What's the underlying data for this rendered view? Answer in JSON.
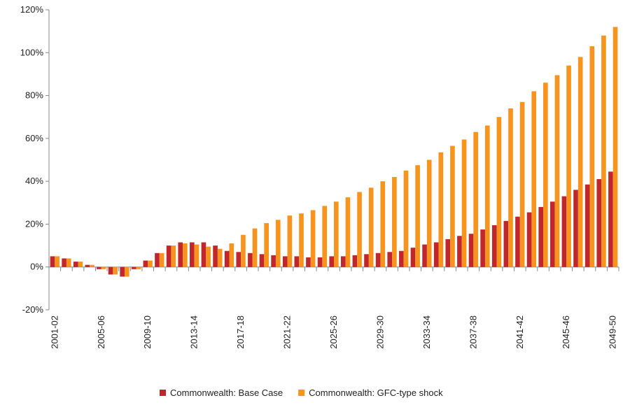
{
  "chart_data": {
    "type": "bar",
    "categories": [
      "2001-02",
      null,
      null,
      null,
      "2005-06",
      null,
      null,
      null,
      "2009-10",
      null,
      null,
      null,
      "2013-14",
      null,
      null,
      null,
      "2017-18",
      null,
      null,
      null,
      "2021-22",
      null,
      null,
      null,
      "2025-26",
      null,
      null,
      null,
      "2029-30",
      null,
      null,
      null,
      "2033-34",
      null,
      null,
      null,
      "2037-38",
      null,
      null,
      null,
      "2041-42",
      null,
      null,
      null,
      "2045-46",
      null,
      null,
      null,
      "2049-50"
    ],
    "series": [
      {
        "name": "Commonwealth: Base Case",
        "color": "#c0272d",
        "values": [
          5,
          4,
          2.5,
          1,
          -1,
          -3.5,
          -4.5,
          -1,
          3,
          6.5,
          10,
          11.5,
          11.5,
          11.5,
          10,
          7.5,
          7,
          6.5,
          6,
          5.5,
          5,
          5,
          4.5,
          4.5,
          5,
          5,
          5.5,
          6,
          6.5,
          7,
          7.5,
          9,
          10.5,
          11.5,
          13,
          14.5,
          15.5,
          17.5,
          19.5,
          21.5,
          23.5,
          25.5,
          28,
          30.5,
          33,
          36,
          38.5,
          41,
          44.5
        ]
      },
      {
        "name": "Commonwealth: GFC-type shock",
        "color": "#f7941d",
        "values": [
          5,
          4,
          2.5,
          1,
          -1,
          -3.5,
          -4.5,
          -1,
          3,
          6.5,
          10,
          11,
          10.5,
          9.5,
          8.5,
          11,
          15,
          18,
          20.5,
          22,
          24,
          25,
          26.5,
          28.5,
          30.5,
          32.5,
          35,
          37,
          40,
          42,
          45,
          47.5,
          50,
          53.5,
          56.5,
          59.5,
          63,
          66,
          70,
          74,
          77,
          82,
          86,
          89.5,
          94,
          98,
          103,
          108,
          112
        ]
      }
    ],
    "ylim": [
      -20,
      120
    ],
    "yticks": [
      {
        "value": -20,
        "label": "-20%"
      },
      {
        "value": 0,
        "label": "0%"
      },
      {
        "value": 20,
        "label": "20%"
      },
      {
        "value": 40,
        "label": "40%"
      },
      {
        "value": 60,
        "label": "60%"
      },
      {
        "value": 80,
        "label": "80%"
      },
      {
        "value": 100,
        "label": "100%"
      },
      {
        "value": 120,
        "label": "120%"
      }
    ],
    "grid": false,
    "legend": "bottom"
  }
}
